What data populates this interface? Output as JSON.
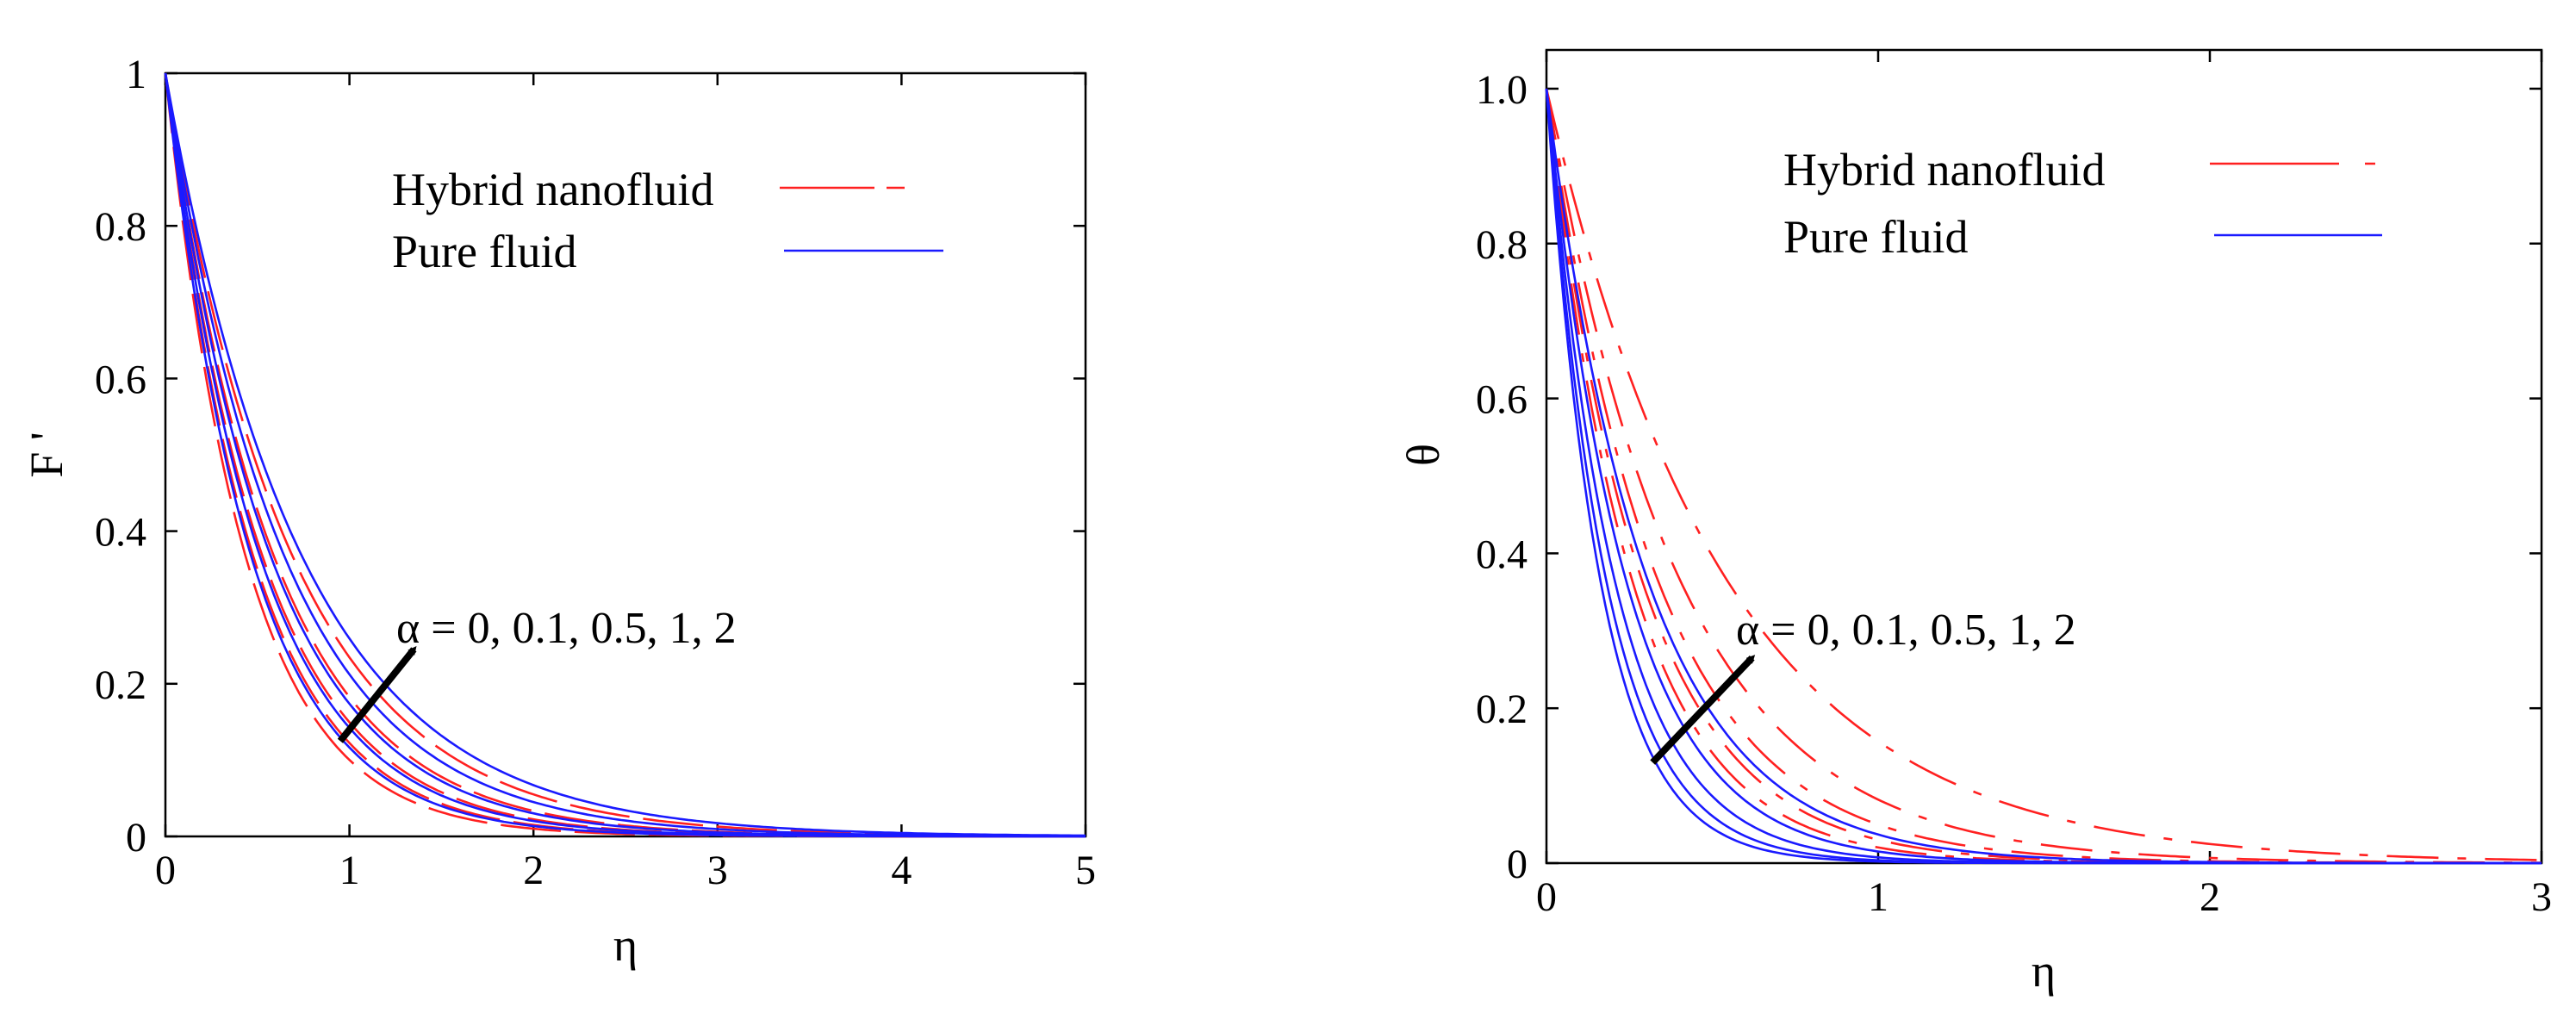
{
  "colors": {
    "hybrid": "#ff2020",
    "pure": "#1a1aff",
    "axis": "#000000",
    "arrow": "#000000"
  },
  "chart_data": [
    {
      "type": "line",
      "ylabel": "F '",
      "xlabel": "η",
      "xlim": [
        0,
        5
      ],
      "ylim": [
        0,
        1
      ],
      "xticks": [
        0,
        1,
        2,
        3,
        4,
        5
      ],
      "xtick_labels": [
        "0",
        "1",
        "2",
        "3",
        "4",
        "5"
      ],
      "yticks": [
        0,
        0.2,
        0.4,
        0.6,
        0.8,
        1
      ],
      "ytick_labels": [
        "0",
        "0.2",
        "0.4",
        "0.6",
        "0.8",
        "1"
      ],
      "legend_placement": "top-right",
      "legend": [
        {
          "label": "Hybrid nanofluid",
          "style": "dashed",
          "color": "#ff2020"
        },
        {
          "label": "Pure fluid",
          "style": "solid",
          "color": "#1a1aff"
        }
      ],
      "annotation": {
        "text": "α = 0, 0.1, 0.5, 1, 2",
        "arrow_from": [
          0.95,
          0.125
        ],
        "arrow_to": [
          1.35,
          0.245
        ]
      },
      "alpha_values": [
        0,
        0.1,
        0.5,
        1,
        2
      ],
      "series": [
        {
          "name": "Hybrid nanofluid",
          "style": "dashed",
          "alpha": 0,
          "decay_rate": 2.3
        },
        {
          "name": "Hybrid nanofluid",
          "style": "dashed",
          "alpha": 0.1,
          "decay_rate": 2.1
        },
        {
          "name": "Hybrid nanofluid",
          "style": "dashed",
          "alpha": 0.5,
          "decay_rate": 1.9
        },
        {
          "name": "Hybrid nanofluid",
          "style": "dashed",
          "alpha": 1,
          "decay_rate": 1.7
        },
        {
          "name": "Hybrid nanofluid",
          "style": "dashed",
          "alpha": 2,
          "decay_rate": 1.45
        },
        {
          "name": "Pure fluid",
          "style": "solid",
          "alpha": 0,
          "decay_rate": 2.15
        },
        {
          "name": "Pure fluid",
          "style": "solid",
          "alpha": 0.1,
          "decay_rate": 1.95
        },
        {
          "name": "Pure fluid",
          "style": "solid",
          "alpha": 0.5,
          "decay_rate": 1.75
        },
        {
          "name": "Pure fluid",
          "style": "solid",
          "alpha": 1,
          "decay_rate": 1.55
        },
        {
          "name": "Pure fluid",
          "style": "solid",
          "alpha": 2,
          "decay_rate": 1.35
        }
      ]
    },
    {
      "type": "line",
      "ylabel": "θ",
      "xlabel": "η",
      "xlim": [
        0,
        3
      ],
      "ylim": [
        0,
        1.05
      ],
      "xticks": [
        0,
        1,
        2,
        3
      ],
      "xtick_labels": [
        "0",
        "1",
        "2",
        "3"
      ],
      "yticks": [
        0,
        0.2,
        0.4,
        0.6,
        0.8,
        1.0
      ],
      "ytick_labels": [
        "0",
        "0.2",
        "0.4",
        "0.6",
        "0.8",
        "1.0"
      ],
      "legend_placement": "top-right",
      "legend": [
        {
          "label": "Hybrid nanofluid",
          "style": "dashed",
          "color": "#ff2020"
        },
        {
          "label": "Pure fluid",
          "style": "solid",
          "color": "#1a1aff"
        }
      ],
      "annotation": {
        "text": "α = 0, 0.1, 0.5, 1, 2",
        "arrow_from": [
          0.32,
          0.13
        ],
        "arrow_to": [
          0.62,
          0.265
        ]
      },
      "alpha_values": [
        0,
        0.1,
        0.5,
        1,
        2
      ],
      "series": [
        {
          "name": "Hybrid nanofluid",
          "style": "dashed",
          "alpha": 0,
          "decay_rate": 3.9
        },
        {
          "name": "Hybrid nanofluid",
          "style": "dashed",
          "alpha": 0.1,
          "decay_rate": 3.5
        },
        {
          "name": "Hybrid nanofluid",
          "style": "dashed",
          "alpha": 0.5,
          "decay_rate": 3.0
        },
        {
          "name": "Hybrid nanofluid",
          "style": "dashed",
          "alpha": 1,
          "decay_rate": 2.5
        },
        {
          "name": "Hybrid nanofluid",
          "style": "dashed",
          "alpha": 2,
          "decay_rate": 1.85
        },
        {
          "name": "Pure fluid",
          "style": "solid",
          "alpha": 0,
          "decay_rate": 6.2
        },
        {
          "name": "Pure fluid",
          "style": "solid",
          "alpha": 0.1,
          "decay_rate": 5.6
        },
        {
          "name": "Pure fluid",
          "style": "solid",
          "alpha": 0.5,
          "decay_rate": 4.9
        },
        {
          "name": "Pure fluid",
          "style": "solid",
          "alpha": 1,
          "decay_rate": 4.2
        },
        {
          "name": "Pure fluid",
          "style": "solid",
          "alpha": 2,
          "decay_rate": 3.3
        }
      ]
    }
  ]
}
